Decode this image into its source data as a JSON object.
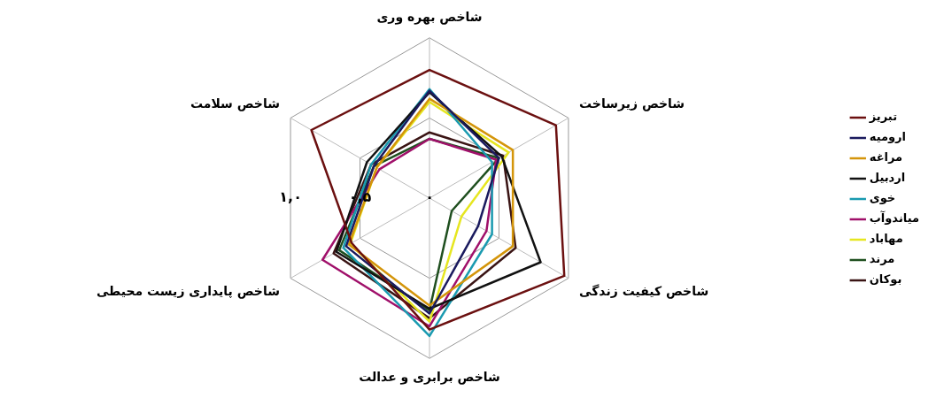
{
  "chart_data": {
    "type": "radar",
    "categories": [
      "شاخص بهره وری",
      "شاخص زیرساخت",
      "شاخص کیفیت زندگی",
      "شاخص برابری و عدالت",
      "شاخص پایداری زیست محیطی",
      "شاخص سلامت"
    ],
    "series": [
      {
        "name": "تبریز",
        "color": "#6b1010",
        "values": [
          0.8,
          0.91,
          0.97,
          0.82,
          0.56,
          0.85
        ]
      },
      {
        "name": "ارومیه",
        "color": "#1a1a5e",
        "values": [
          0.67,
          0.5,
          0.35,
          0.72,
          0.6,
          0.4
        ]
      },
      {
        "name": "مراغه",
        "color": "#d4950a",
        "values": [
          0.62,
          0.6,
          0.6,
          0.67,
          0.58,
          0.38
        ]
      },
      {
        "name": "اردبیل",
        "color": "#111111",
        "values": [
          0.66,
          0.52,
          0.8,
          0.69,
          0.67,
          0.45
        ]
      },
      {
        "name": "خوی",
        "color": "#1a9ab0",
        "values": [
          0.68,
          0.45,
          0.45,
          0.86,
          0.62,
          0.42
        ]
      },
      {
        "name": "میاندوآب",
        "color": "#a0106a",
        "values": [
          0.37,
          0.48,
          0.41,
          0.8,
          0.77,
          0.36
        ]
      },
      {
        "name": "مهاباد",
        "color": "#e6e620",
        "values": [
          0.6,
          0.57,
          0.23,
          0.77,
          0.57,
          0.38
        ]
      },
      {
        "name": "مرند",
        "color": "#1f4f1f",
        "values": [
          0.37,
          0.5,
          0.16,
          0.7,
          0.65,
          0.4
        ]
      },
      {
        "name": "بوکان",
        "color": "#3a1414",
        "values": [
          0.41,
          0.53,
          0.62,
          0.75,
          0.69,
          0.42
        ]
      }
    ],
    "ylim": [
      0,
      1
    ],
    "yticks": [
      {
        "value": 0,
        "label": "۰"
      },
      {
        "value": 0.5,
        "label": "۰,۵"
      },
      {
        "value": 1,
        "label": "۱,۰"
      }
    ],
    "grid": true,
    "legend": "right",
    "marker": "none",
    "line_style": "solid"
  }
}
